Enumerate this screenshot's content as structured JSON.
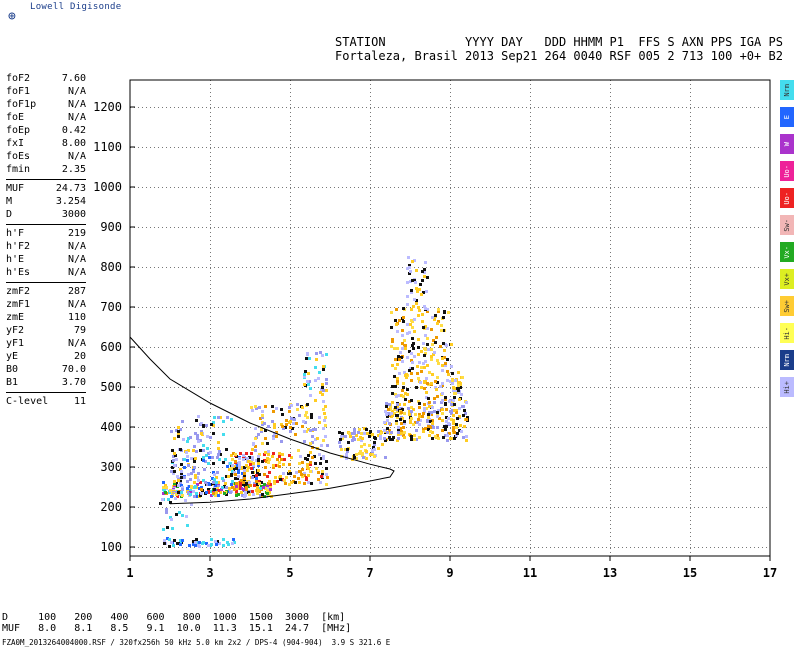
{
  "app": {
    "logo_text": "Lowell Digisonde"
  },
  "header": {
    "line1": "STATION           YYYY DAY   DDD HHMM P1  FFS S AXN PPS IGA PS",
    "line2": "Fortaleza, Brasil 2013 Sep21 264 0040 RSF 005 2 713 100 +0+ B2"
  },
  "params": [
    [
      {
        "name": "foF2",
        "value": "7.60"
      },
      {
        "name": "foF1",
        "value": "N/A"
      },
      {
        "name": "foF1p",
        "value": "N/A"
      },
      {
        "name": "foE",
        "value": "N/A"
      },
      {
        "name": "foEp",
        "value": "0.42"
      },
      {
        "name": "fxI",
        "value": "8.00"
      },
      {
        "name": "foEs",
        "value": "N/A"
      },
      {
        "name": "fmin",
        "value": "2.35"
      }
    ],
    [
      {
        "name": "MUF",
        "value": "24.73"
      },
      {
        "name": "M",
        "value": "3.254"
      },
      {
        "name": "D",
        "value": "3000"
      }
    ],
    [
      {
        "name": "h'F",
        "value": "219"
      },
      {
        "name": "h'F2",
        "value": "N/A"
      },
      {
        "name": "h'E",
        "value": "N/A"
      },
      {
        "name": "h'Es",
        "value": "N/A"
      }
    ],
    [
      {
        "name": "zmF2",
        "value": "287"
      },
      {
        "name": "zmF1",
        "value": "N/A"
      },
      {
        "name": "zmE",
        "value": "110"
      },
      {
        "name": "yF2",
        "value": "79"
      },
      {
        "name": "yF1",
        "value": "N/A"
      },
      {
        "name": "yE",
        "value": "20"
      },
      {
        "name": "B0",
        "value": "70.0"
      },
      {
        "name": "B1",
        "value": "3.70"
      }
    ],
    [
      {
        "name": "C-level",
        "value": "11"
      }
    ]
  ],
  "legend": [
    {
      "label": "Nrm",
      "color": "#44ddee"
    },
    {
      "label": "E",
      "color": "#2266ff"
    },
    {
      "label": "W",
      "color": "#aa33cc"
    },
    {
      "label": "Uo-",
      "color": "#ee2299"
    },
    {
      "label": "Uo-",
      "color": "#ee2222"
    },
    {
      "label": "Sw-",
      "color": "#f2b6b6"
    },
    {
      "label": "Vx-",
      "color": "#22aa22"
    },
    {
      "label": "Vx+",
      "color": "#ddee22"
    },
    {
      "label": "Sw+",
      "color": "#ffcc33"
    },
    {
      "label": "Hi-",
      "color": "#ffff55"
    },
    {
      "label": "Nrm",
      "color": "#1a3d8a"
    },
    {
      "label": "Hi+",
      "color": "#bbbbff"
    }
  ],
  "bottom": {
    "row1": "D     100   200   400   600   800  1000  1500  3000  [km]",
    "row2": "MUF   8.0   8.1   8.5   9.1  10.0  11.3  15.1  24.7  [MHz]"
  },
  "footer": "FZA0M_2013264004000.RSF / 320fx256h 50 kHz 5.0 km 2x2 / DPS-4 (904-904)  3.9 S 321.6 E",
  "chart_data": {
    "type": "scatter",
    "x_ticks": [
      1,
      3,
      5,
      7,
      9,
      11,
      13,
      15,
      17
    ],
    "y_ticks": [
      100,
      200,
      300,
      400,
      500,
      600,
      700,
      800,
      900,
      1000,
      1100,
      1200
    ],
    "xlim": [
      1,
      17
    ],
    "ylim": [
      80,
      1270
    ],
    "grid": true,
    "colors": [
      "#ffcc22",
      "#ffdd44",
      "#ee9900",
      "#bbbbff",
      "#9999ee",
      "#44ddee",
      "#2266ff",
      "#111111",
      "#ee2222",
      "#22aa22",
      "#aa33cc",
      "#ffffff"
    ],
    "clusters": [
      {
        "x": [
          1.8,
          3.6
        ],
        "y": [
          105,
          125
        ],
        "n": 50,
        "palette": [
          5,
          3,
          7,
          6
        ]
      },
      {
        "x": [
          1.8,
          4.5
        ],
        "y": [
          230,
          265
        ],
        "n": 230,
        "palette": [
          0,
          1,
          2,
          3,
          4,
          5,
          6,
          7,
          8,
          9,
          10
        ]
      },
      {
        "x": [
          2.0,
          4.2
        ],
        "y": [
          265,
          330
        ],
        "n": 130,
        "palette": [
          3,
          4,
          5,
          6,
          7,
          0
        ]
      },
      {
        "x": [
          2.0,
          3.5
        ],
        "y": [
          330,
          430
        ],
        "n": 70,
        "palette": [
          3,
          4,
          5,
          7,
          0
        ]
      },
      {
        "x": [
          3.5,
          5.9
        ],
        "y": [
          260,
          340
        ],
        "n": 170,
        "palette": [
          0,
          1,
          2,
          3,
          7,
          8
        ]
      },
      {
        "x": [
          4.0,
          5.9
        ],
        "y": [
          340,
          460
        ],
        "n": 110,
        "palette": [
          0,
          1,
          3,
          4,
          7,
          2
        ]
      },
      {
        "x": [
          5.3,
          5.9
        ],
        "y": [
          460,
          600
        ],
        "n": 40,
        "palette": [
          3,
          4,
          7,
          5,
          0
        ]
      },
      {
        "x": [
          6.2,
          7.4
        ],
        "y": [
          320,
          400
        ],
        "n": 90,
        "palette": [
          3,
          4,
          0,
          1,
          7
        ]
      },
      {
        "x": [
          7.3,
          9.4
        ],
        "y": [
          370,
          470
        ],
        "n": 260,
        "palette": [
          0,
          1,
          2,
          3,
          4,
          7
        ]
      },
      {
        "x": [
          7.5,
          9.0
        ],
        "y": [
          470,
          700
        ],
        "n": 210,
        "palette": [
          0,
          1,
          2,
          7,
          3
        ]
      },
      {
        "x": [
          7.9,
          8.4
        ],
        "y": [
          700,
          840
        ],
        "n": 40,
        "palette": [
          7,
          3,
          0
        ]
      },
      {
        "x": [
          9.0,
          9.3
        ],
        "y": [
          470,
          540
        ],
        "n": 30,
        "palette": [
          0,
          1,
          3,
          7
        ]
      },
      {
        "x": [
          1.7,
          2.5
        ],
        "y": [
          140,
          230
        ],
        "n": 20,
        "palette": [
          3,
          4,
          5,
          7
        ]
      }
    ],
    "trace": {
      "upper": {
        "x": [
          1.0,
          1.5,
          2.0,
          3.0,
          4.0,
          5.0,
          6.0,
          7.0,
          7.5
        ],
        "y": [
          625,
          570,
          520,
          460,
          410,
          370,
          335,
          307,
          295
        ]
      },
      "lower": {
        "x": [
          2.0,
          3.0,
          4.0,
          5.0,
          6.0,
          7.0,
          7.5,
          7.6
        ],
        "y": [
          208,
          212,
          220,
          233,
          247,
          265,
          275,
          290
        ]
      }
    }
  }
}
